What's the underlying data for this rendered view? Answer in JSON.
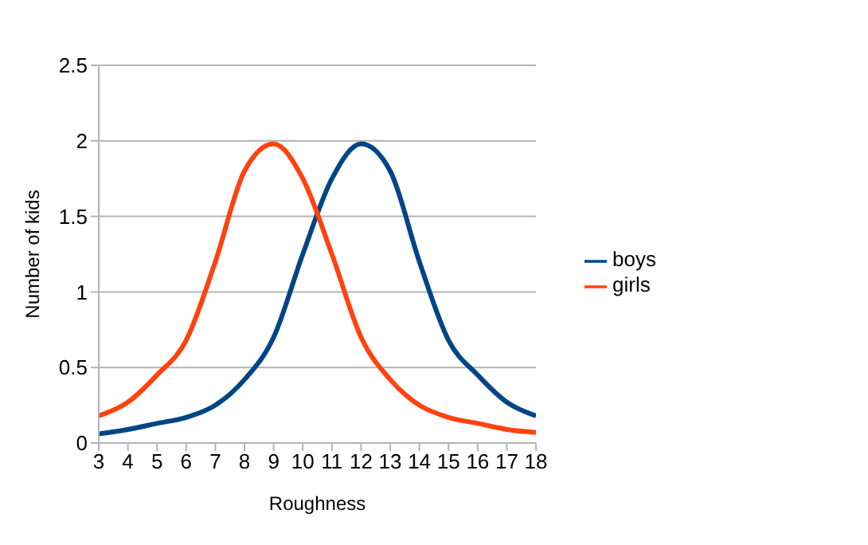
{
  "chart_data": {
    "type": "line",
    "xlabel": "Roughness",
    "ylabel": "Number of kids",
    "x": [
      3,
      4,
      5,
      6,
      7,
      8,
      9,
      10,
      11,
      12,
      13,
      14,
      15,
      16,
      17,
      18
    ],
    "series": [
      {
        "name": "boys",
        "color": "#004586",
        "values": [
          0.06,
          0.09,
          0.13,
          0.17,
          0.25,
          0.42,
          0.7,
          1.25,
          1.75,
          1.98,
          1.8,
          1.2,
          0.68,
          0.45,
          0.27,
          0.18
        ]
      },
      {
        "name": "girls",
        "color": "#ff420e",
        "values": [
          0.18,
          0.27,
          0.45,
          0.68,
          1.2,
          1.8,
          1.98,
          1.75,
          1.25,
          0.7,
          0.42,
          0.25,
          0.17,
          0.13,
          0.09,
          0.07
        ]
      }
    ],
    "xlim": [
      3,
      18
    ],
    "xticks": [
      3,
      4,
      5,
      6,
      7,
      8,
      9,
      10,
      11,
      12,
      13,
      14,
      15,
      16,
      17,
      18
    ],
    "ylim": [
      0,
      2.5
    ],
    "yticks": [
      0,
      0.5,
      1,
      1.5,
      2,
      2.5
    ],
    "grid": "y",
    "legend": "right",
    "marker": "none",
    "line_style": "solid"
  }
}
